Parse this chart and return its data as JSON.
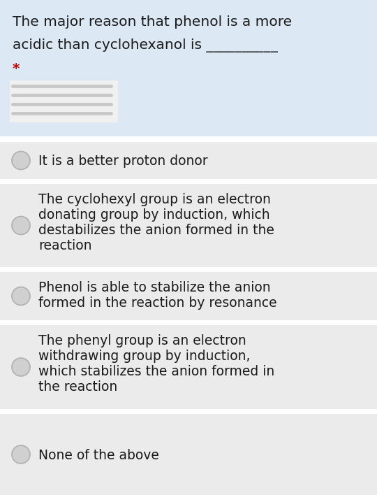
{
  "title_line1": "The major reason that phenol is a more",
  "title_line2": "acidic than cyclohexanol is __________",
  "asterisk": "*",
  "header_bg": "#dce8f3",
  "option_bg": "#ebebeb",
  "separator_color": "#ffffff",
  "radio_fill": "#d0d0d0",
  "radio_border": "#b0b0b0",
  "text_color": "#1a1a1a",
  "asterisk_color": "#cc0000",
  "options": [
    "It is a better proton donor",
    "The cyclohexyl group is an electron\ndonating group by induction, which\ndestabilizes the anion formed in the\nreaction",
    "Phenol is able to stabilize the anion\nformed in the reaction by resonance",
    "The phenyl group is an electron\nwithdrawing group by induction,\nwhich stabilizes the anion formed in\nthe reaction",
    "None of the above"
  ],
  "option_line_counts": [
    1,
    4,
    2,
    4,
    1
  ],
  "font_size_title": 14.5,
  "font_size_option": 13.5,
  "underline_color": "#555555",
  "blur_color": "#e8e8e8"
}
